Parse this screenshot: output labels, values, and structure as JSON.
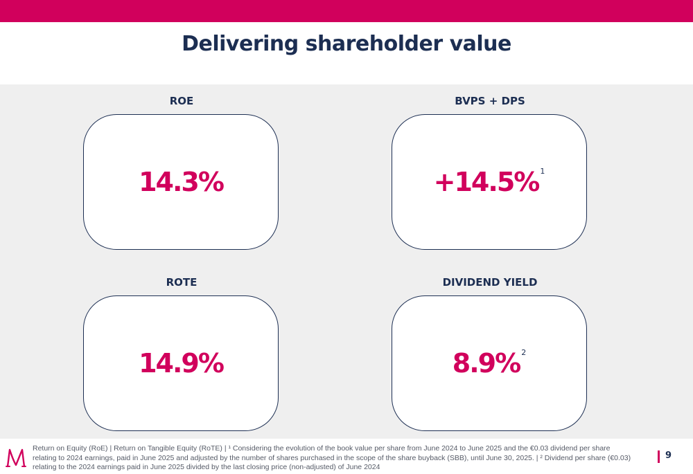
{
  "slide": {
    "title": "Delivering shareholder value",
    "page_number": "9",
    "accent_color": "#d1005c",
    "navy_color": "#1c2e52"
  },
  "metrics": [
    {
      "label": "ROE",
      "value": "14.3%",
      "note": ""
    },
    {
      "label": "BVPS + DPS",
      "value": "+14.5%",
      "note": "1"
    },
    {
      "label": "ROTE",
      "value": "14.9%",
      "note": ""
    },
    {
      "label": "DIVIDEND YIELD",
      "value": "8.9%",
      "note": "2"
    }
  ],
  "footer": {
    "logo_icon": "m-logo-icon",
    "footnote_line1": "Return on Equity (RoE) | Return on Tangible Equity (RoTE) | ¹ Considering the evolution of the book value per share from June 2024 to June 2025 and the €0.03 dividend per share",
    "footnote_line2": "relating to 2024 earnings, paid in June 2025 and adjusted by the number of shares purchased in the scope of the share buyback (SBB), until June 30, 2025. | ² Dividend per share (€0.03)",
    "footnote_line3": "relating to the 2024 earnings paid in June 2025 divided by the last closing price (non-adjusted) of June 2024"
  }
}
